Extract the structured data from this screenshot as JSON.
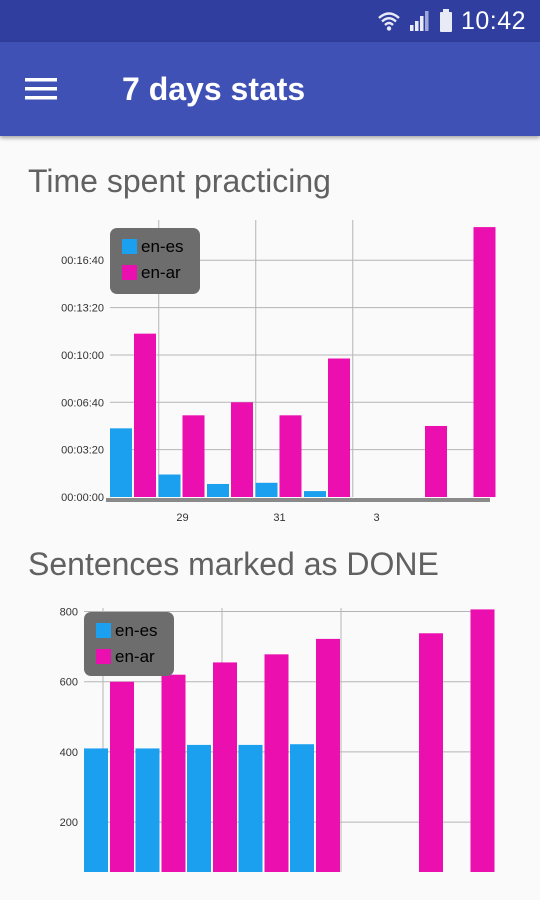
{
  "status_bar": {
    "time": "10:42"
  },
  "app_bar": {
    "title": "7 days stats",
    "menu_icon": "hamburger-menu-icon"
  },
  "sections": [
    {
      "title": "Time spent practicing"
    },
    {
      "title": "Sentences marked as DONE"
    }
  ],
  "colors": {
    "primary_dark": "#303f9f",
    "primary": "#3f51b5",
    "en_es": "#1aa0ee",
    "en_ar": "#ec0fb0",
    "legend_bg": "#6d6d6d"
  },
  "chart_data": [
    {
      "type": "bar",
      "title": "Time spent practicing",
      "categories": [
        "",
        "29",
        "",
        "31",
        "",
        "3",
        "",
        ""
      ],
      "y_ticks": [
        "00:00:00",
        "00:03:20",
        "00:06:40",
        "00:10:00",
        "00:13:20",
        "00:16:40"
      ],
      "ylim_seconds": [
        0,
        1170
      ],
      "series": [
        {
          "name": "en-es",
          "values_seconds": [
            290,
            95,
            55,
            60,
            25,
            null,
            null,
            null
          ]
        },
        {
          "name": "en-ar",
          "values_seconds": [
            690,
            345,
            400,
            345,
            585,
            null,
            300,
            1140
          ]
        }
      ],
      "legend": "top-left",
      "grid": true
    },
    {
      "type": "bar",
      "title": "Sentences marked as DONE",
      "categories": [
        "",
        "",
        "",
        "",
        "",
        "",
        "",
        ""
      ],
      "y_ticks": [
        "200",
        "400",
        "600",
        "800"
      ],
      "ylim": [
        58,
        810
      ],
      "series": [
        {
          "name": "en-es",
          "values": [
            410,
            410,
            420,
            420,
            422,
            null,
            null,
            null
          ]
        },
        {
          "name": "en-ar",
          "values": [
            600,
            620,
            655,
            678,
            722,
            null,
            738,
            806
          ]
        }
      ],
      "legend": "top-left",
      "grid": true
    }
  ]
}
